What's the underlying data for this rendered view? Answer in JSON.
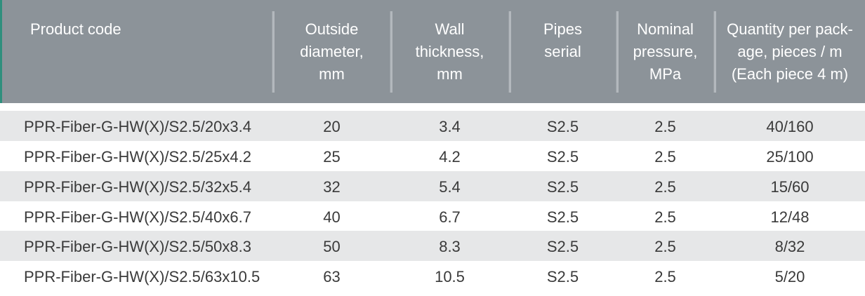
{
  "table": {
    "headers": [
      [
        "Product code"
      ],
      [
        "Outside",
        "diameter,",
        "mm"
      ],
      [
        "Wall",
        "thickness,",
        "mm"
      ],
      [
        "Pipes",
        "serial"
      ],
      [
        "Nominal",
        "pressure,",
        "MPa"
      ],
      [
        "Quantity per pack-",
        "age, pieces / m",
        "(Each piece 4 m)"
      ]
    ],
    "rows": [
      [
        "PPR-Fiber-G-HW(X)/S2.5/20x3.4",
        "20",
        "3.4",
        "S2.5",
        "2.5",
        "40/160"
      ],
      [
        "PPR-Fiber-G-HW(X)/S2.5/25x4.2",
        "25",
        "4.2",
        "S2.5",
        "2.5",
        "25/100"
      ],
      [
        "PPR-Fiber-G-HW(X)/S2.5/32x5.4",
        "32",
        "5.4",
        "S2.5",
        "2.5",
        "15/60"
      ],
      [
        "PPR-Fiber-G-HW(X)/S2.5/40x6.7",
        "40",
        "6.7",
        "S2.5",
        "2.5",
        "12/48"
      ],
      [
        "PPR-Fiber-G-HW(X)/S2.5/50x8.3",
        "50",
        "8.3",
        "S2.5",
        "2.5",
        "8/32"
      ],
      [
        "PPR-Fiber-G-HW(X)/S2.5/63x10.5",
        "63",
        "10.5",
        "S2.5",
        "2.5",
        "5/20"
      ]
    ]
  },
  "colors": {
    "header_bg": "#8c9399",
    "shaded_row": "#e6e7e8",
    "text": "#3a3a3a",
    "accent": "#2f8f7d"
  }
}
